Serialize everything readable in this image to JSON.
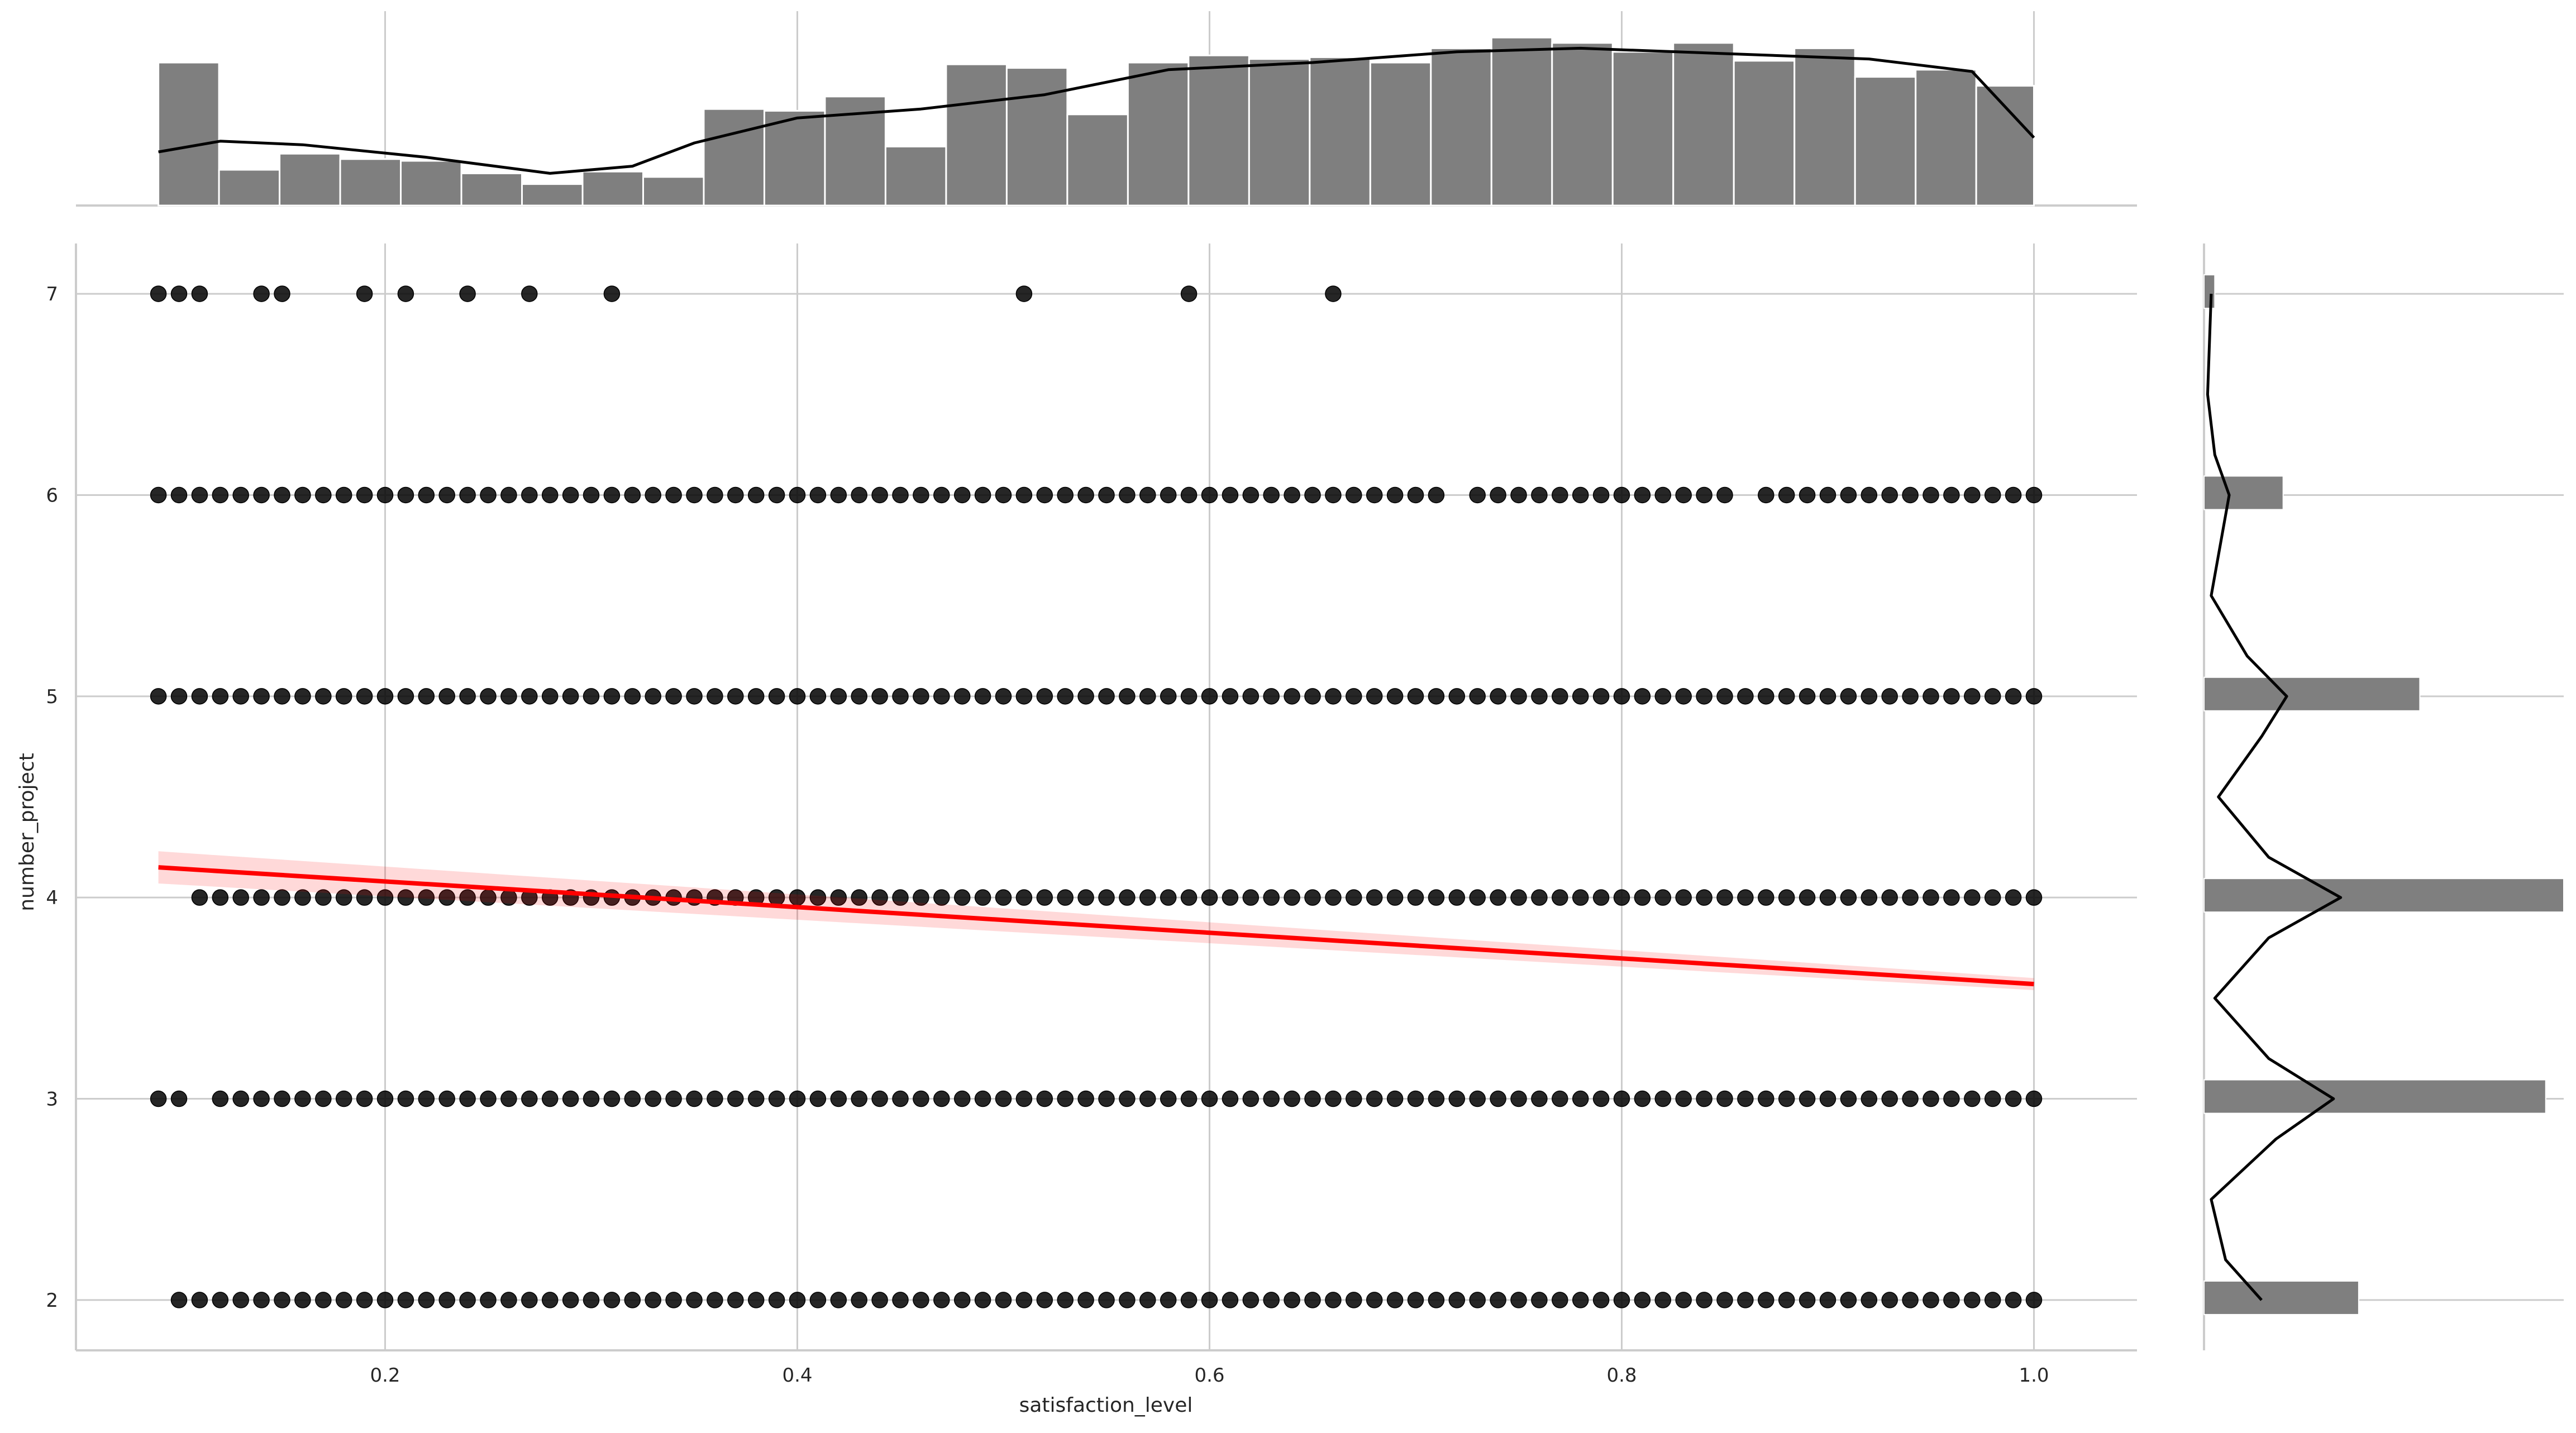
{
  "chart_data": {
    "type": "scatter",
    "title": "",
    "xlabel": "satisfaction_level",
    "ylabel": "number_project",
    "xlim": [
      0.05,
      1.05
    ],
    "ylim": [
      1.75,
      7.25
    ],
    "x_ticks": [
      "0.2",
      "0.4",
      "0.6",
      "0.8",
      "1.0"
    ],
    "y_ticks": [
      "2",
      "3",
      "4",
      "5",
      "6",
      "7"
    ],
    "grid": true,
    "colors": {
      "points": "#000000",
      "regression": "#ff0000",
      "histogram": "#7f7f7f",
      "kde": "#000000",
      "grid": "#cccccc"
    },
    "scatter_rows": [
      {
        "y": 7,
        "x_values": [
          0.09,
          0.1,
          0.11,
          0.14,
          0.15,
          0.19,
          0.21,
          0.24,
          0.27,
          0.31,
          0.51,
          0.59,
          0.66
        ]
      },
      {
        "y": 6,
        "x_range": [
          0.09,
          1.0
        ],
        "step": 0.01,
        "missing": [
          0.72,
          0.86
        ]
      },
      {
        "y": 5,
        "x_range": [
          0.09,
          1.0
        ],
        "step": 0.01,
        "missing": []
      },
      {
        "y": 4,
        "x_range": [
          0.11,
          1.0
        ],
        "step": 0.01,
        "missing": []
      },
      {
        "y": 3,
        "x_values_extra": [
          0.09,
          0.1
        ],
        "x_range": [
          0.12,
          1.0
        ],
        "step": 0.01,
        "missing": []
      },
      {
        "y": 2,
        "x_range": [
          0.1,
          1.0
        ],
        "step": 0.01,
        "missing": []
      }
    ],
    "regression": {
      "x": [
        0.09,
        1.0
      ],
      "y": [
        4.15,
        3.57
      ],
      "ci_halfwidth": [
        0.08,
        0.03
      ]
    },
    "x_histogram": {
      "bin_start": 0.09,
      "bin_width": 0.0294,
      "relative_heights": [
        0.8,
        0.2,
        0.29,
        0.26,
        0.25,
        0.18,
        0.12,
        0.19,
        0.16,
        0.54,
        0.53,
        0.61,
        0.33,
        0.79,
        0.77,
        0.51,
        0.8,
        0.84,
        0.82,
        0.83,
        0.8,
        0.88,
        0.94,
        0.91,
        0.86,
        0.91,
        0.81,
        0.88,
        0.72,
        0.76,
        0.67
      ],
      "kde": [
        [
          0.09,
          0.3
        ],
        [
          0.12,
          0.36
        ],
        [
          0.16,
          0.34
        ],
        [
          0.22,
          0.27
        ],
        [
          0.28,
          0.18
        ],
        [
          0.32,
          0.22
        ],
        [
          0.35,
          0.35
        ],
        [
          0.4,
          0.49
        ],
        [
          0.46,
          0.54
        ],
        [
          0.52,
          0.62
        ],
        [
          0.58,
          0.76
        ],
        [
          0.65,
          0.8
        ],
        [
          0.72,
          0.86
        ],
        [
          0.78,
          0.88
        ],
        [
          0.85,
          0.85
        ],
        [
          0.92,
          0.82
        ],
        [
          0.97,
          0.75
        ],
        [
          1.0,
          0.38
        ]
      ]
    },
    "y_histogram": {
      "bars": [
        {
          "y": 2,
          "relative_width": 0.43
        },
        {
          "y": 3,
          "relative_width": 0.95
        },
        {
          "y": 4,
          "relative_width": 1.0
        },
        {
          "y": 5,
          "relative_width": 0.6
        },
        {
          "y": 6,
          "relative_width": 0.22
        },
        {
          "y": 7,
          "relative_width": 0.03
        }
      ],
      "kde": [
        [
          2.0,
          0.16
        ],
        [
          2.2,
          0.06
        ],
        [
          2.5,
          0.02
        ],
        [
          2.8,
          0.2
        ],
        [
          3.0,
          0.36
        ],
        [
          3.2,
          0.18
        ],
        [
          3.5,
          0.03
        ],
        [
          3.8,
          0.18
        ],
        [
          4.0,
          0.38
        ],
        [
          4.2,
          0.18
        ],
        [
          4.5,
          0.04
        ],
        [
          4.8,
          0.16
        ],
        [
          5.0,
          0.23
        ],
        [
          5.2,
          0.12
        ],
        [
          5.5,
          0.02
        ],
        [
          5.8,
          0.05
        ],
        [
          6.0,
          0.07
        ],
        [
          6.2,
          0.03
        ],
        [
          6.5,
          0.01
        ],
        [
          7.0,
          0.02
        ]
      ]
    }
  }
}
